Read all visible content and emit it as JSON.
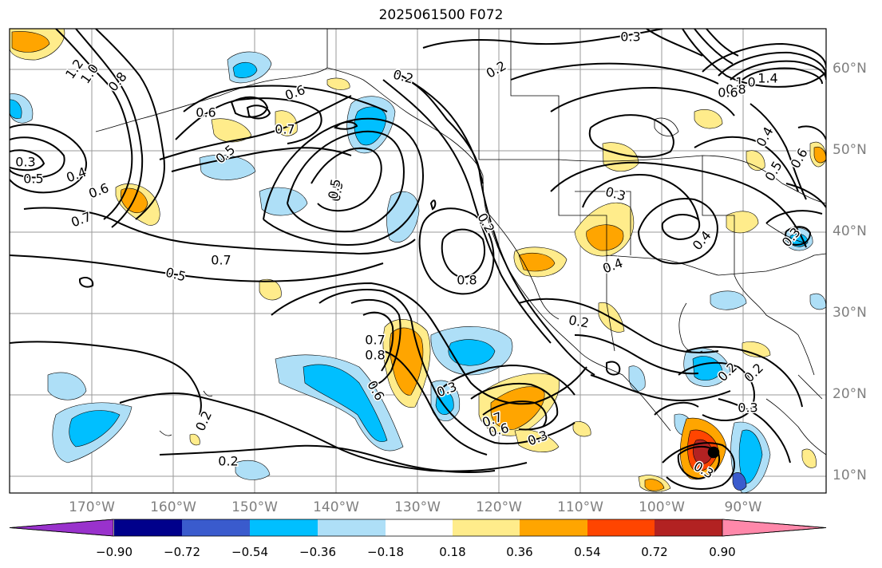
{
  "title": "2025061500 F072",
  "lat_labels": [
    "60°N",
    "50°N",
    "40°N",
    "30°N",
    "20°N",
    "10°N"
  ],
  "lon_labels": [
    "170°W",
    "160°W",
    "150°W",
    "140°W",
    "130°W",
    "120°W",
    "110°W",
    "100°W",
    "90°W"
  ],
  "colorbar": {
    "colors": [
      "#9932cc",
      "#00008b",
      "#3a5bcd",
      "#00bfff",
      "#aedff7",
      "#ffffff",
      "#ffec8b",
      "#ffa500",
      "#ff4500",
      "#b22222",
      "#ff88aa"
    ],
    "ticks": [
      "−0.90",
      "−0.72",
      "−0.54",
      "−0.36",
      "−0.18",
      "0.18",
      "0.36",
      "0.54",
      "0.72",
      "0.90"
    ]
  },
  "contour_labels": [
    "1.2",
    "1.0",
    "0.8",
    "0.6",
    "0.7",
    "0.5",
    "0.6",
    "0.5",
    "0.3",
    "0.5",
    "0.4",
    "0.6",
    "0.7",
    "0.2",
    "0.3",
    "0.2",
    "1.4",
    "1.0",
    "0.8",
    "0.6",
    "0.4",
    "0.5",
    "0.6",
    "0.5",
    "0.7",
    "0.5",
    "0.8",
    "0.7",
    "0.8",
    "0.6",
    "0.3",
    "0.7",
    "0.6",
    "0.3",
    "0.4",
    "0.2",
    "0.4",
    "0.3",
    "0.2",
    "0.2",
    "0.2",
    "0.3",
    "0.3",
    "0.2",
    "0.2",
    "0.3"
  ]
}
